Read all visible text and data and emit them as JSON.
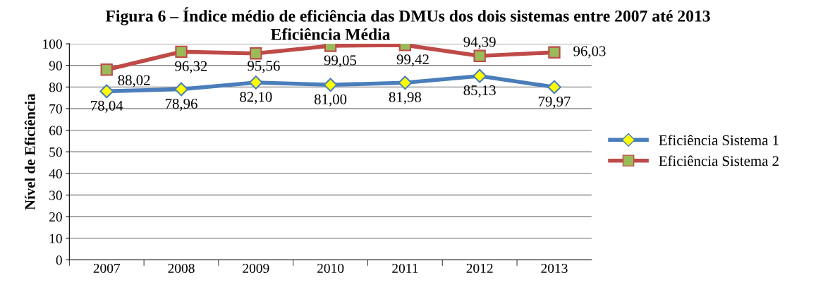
{
  "chart_data": {
    "type": "line",
    "title": "Figura 6 – Índice médio de eficiência das DMUs dos dois sistemas entre 2007 até 2013",
    "subtitle": "Eficiência Média",
    "ylabel": "Nível de Eficiência",
    "categories": [
      "2007",
      "2008",
      "2009",
      "2010",
      "2011",
      "2012",
      "2013"
    ],
    "series": [
      {
        "name": "Eficiência Sistema 1",
        "color": "#4a7ebb",
        "marker": "diamond",
        "values": [
          78.04,
          78.96,
          82.1,
          81.0,
          81.98,
          85.13,
          79.97
        ],
        "value_labels": [
          "78,04",
          "78,96",
          "82,10",
          "81,00",
          "81,98",
          "85,13",
          "79,97"
        ]
      },
      {
        "name": "Eficiência Sistema 2",
        "color": "#be4b48",
        "marker": "square",
        "values": [
          88.02,
          96.32,
          95.56,
          99.05,
          99.42,
          94.39,
          96.03
        ],
        "value_labels": [
          "88,02",
          "96,32",
          "95,56",
          "99,05",
          "99,42",
          "94,39",
          "96,03"
        ]
      }
    ],
    "ylim": [
      0,
      100
    ],
    "yticks": [
      0,
      10,
      20,
      30,
      40,
      50,
      60,
      70,
      80,
      90,
      100
    ],
    "grid": "y",
    "legend": "right",
    "line_style": "solid"
  }
}
